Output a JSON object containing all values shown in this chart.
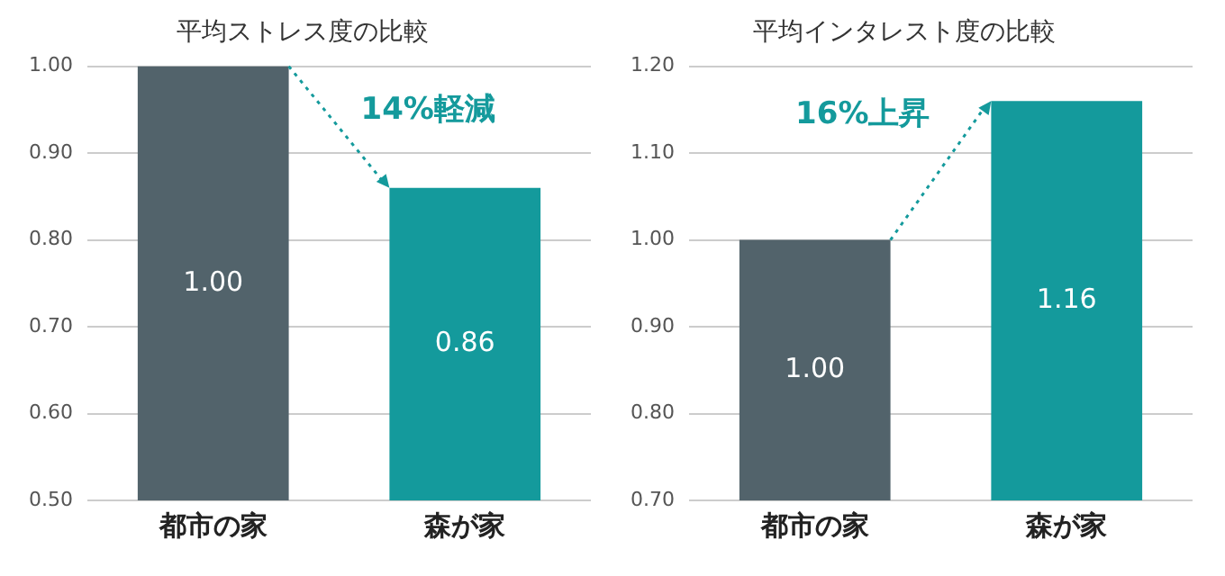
{
  "chart_data": [
    {
      "type": "bar",
      "title": "平均ストレス度の比較",
      "categories": [
        "都市の家",
        "森が家"
      ],
      "values": [
        1.0,
        0.86
      ],
      "colors": [
        "#52636b",
        "#149a9c"
      ],
      "value_labels": [
        "1.00",
        "0.86"
      ],
      "ylim": [
        0.5,
        1.0
      ],
      "yticks": [
        {
          "value": 0.5,
          "label": "0.50"
        },
        {
          "value": 0.6,
          "label": "0.60"
        },
        {
          "value": 0.7,
          "label": "0.70"
        },
        {
          "value": 0.8,
          "label": "0.80"
        },
        {
          "value": 0.9,
          "label": "0.90"
        },
        {
          "value": 1.0,
          "label": "1.00"
        }
      ],
      "grid": "y",
      "annotations": [
        "14%軽減"
      ]
    },
    {
      "type": "bar",
      "title": "平均インタレスト度の比較",
      "categories": [
        "都市の家",
        "森が家"
      ],
      "values": [
        1.0,
        1.16
      ],
      "colors": [
        "#52636b",
        "#149a9c"
      ],
      "value_labels": [
        "1.00",
        "1.16"
      ],
      "ylim": [
        0.7,
        1.2
      ],
      "yticks": [
        {
          "value": 0.7,
          "label": "0.70"
        },
        {
          "value": 0.8,
          "label": "0.80"
        },
        {
          "value": 0.9,
          "label": "0.90"
        },
        {
          "value": 1.0,
          "label": "1.00"
        },
        {
          "value": 1.1,
          "label": "1.10"
        },
        {
          "value": 1.2,
          "label": "1.20"
        }
      ],
      "grid": "y",
      "annotations": [
        "16%上昇"
      ]
    }
  ]
}
